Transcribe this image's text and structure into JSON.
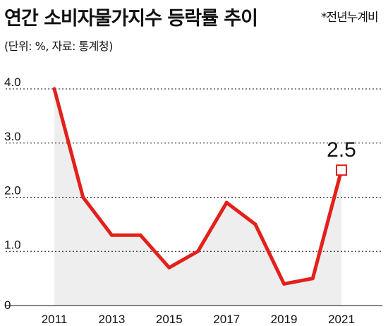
{
  "header": {
    "title": "연간 소비자물가지수 등락률 추이",
    "note": "*전년누계비",
    "subtitle": "(단위: %, 자료: 통계청)"
  },
  "colors": {
    "line": "#e3201b",
    "area": "#eeeeee",
    "grid": "#111111"
  },
  "chart_data": {
    "type": "line",
    "title": "연간 소비자물가지수 등락률 추이",
    "subtitle": "(단위: %, 자료: 통계청)",
    "x": [
      2011,
      2012,
      2013,
      2014,
      2015,
      2016,
      2017,
      2018,
      2019,
      2020,
      2021
    ],
    "series": [
      {
        "values": [
          4.0,
          2.0,
          1.3,
          1.3,
          0.7,
          1.0,
          1.9,
          1.5,
          0.4,
          0.5,
          2.5
        ]
      }
    ],
    "xticks": [
      "2011",
      "2013",
      "2015",
      "2017",
      "2019",
      "2021"
    ],
    "yticks": [
      "4.0",
      "3.0",
      "2.0",
      "1.0",
      "0"
    ],
    "ylim": [
      0,
      4
    ],
    "grid": "horizontal dashed",
    "annotation": {
      "x": 2021,
      "label": "2.5"
    }
  }
}
